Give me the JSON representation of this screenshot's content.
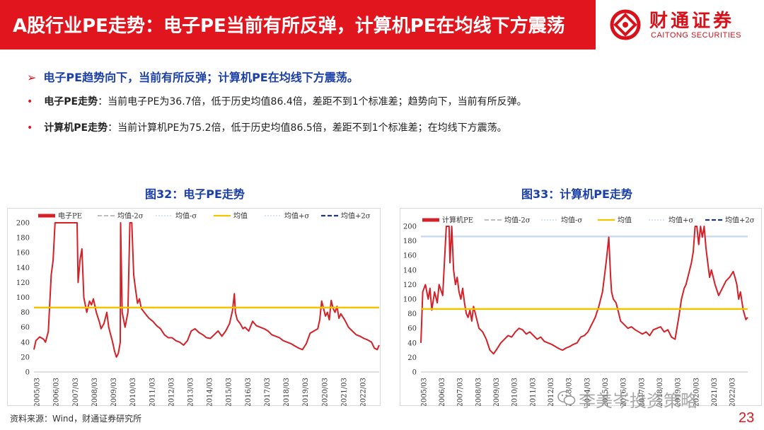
{
  "header": {
    "title": "A股行业PE走势：电子PE当前有所反弹，计算机PE在均线下方震荡",
    "logo_cn": "财通证券",
    "logo_en": "CAITONG SECURITIES"
  },
  "summary": {
    "headline": "电子PE趋势向下，当前有所反弹；计算机PE在均线下方震荡。",
    "bullets": [
      {
        "label": "电子PE走势",
        "text": "：当前电子PE为36.7倍，低于历史均值86.4倍，差距不到1个标准差；趋势向下，当前有所反弹。"
      },
      {
        "label": "计算机PE走势",
        "text": "：当前计算机PE为75.2倍，低于历史均值86.5倍，差距不到1个标准差；在均线下方震荡。"
      }
    ]
  },
  "colors": {
    "header_red": "#e0151e",
    "series_red": "#d42027",
    "mean_yellow": "#f5c400",
    "sigma_gray": "#a8a8a8",
    "sigma_light": "#c9dcef",
    "plus2_navy": "#1f3a7a",
    "title_blue": "#1a3fa8"
  },
  "chart_data": [
    {
      "type": "line",
      "title": "图32：电子PE走势",
      "ylim": [
        0,
        200
      ],
      "yticks": [
        0,
        20,
        40,
        60,
        80,
        100,
        120,
        140,
        160,
        180,
        200
      ],
      "xticks": [
        "2005/03",
        "2006/03",
        "2007/03",
        "2008/03",
        "2009/03",
        "2010/03",
        "2011/03",
        "2012/03",
        "2013/03",
        "2014/03",
        "2015/03",
        "2016/03",
        "2017/03",
        "2018/03",
        "2019/03",
        "2020/03",
        "2021/03",
        "2022/03"
      ],
      "xlim": [
        2005.0,
        2023.0
      ],
      "legend": [
        "电子PE",
        "均值-2σ",
        "均值-σ",
        "均值",
        "均值+σ",
        "均值+2σ"
      ],
      "legend_placement": "top",
      "mean": 86.4,
      "series": [
        {
          "name": "电子PE",
          "x": [
            2005.0,
            2005.1,
            2005.3,
            2005.5,
            2005.6,
            2005.75,
            2005.9,
            2006.0,
            2006.1,
            2006.2,
            2006.4,
            2006.6,
            2006.8,
            2007.0,
            2007.15,
            2007.2,
            2007.25,
            2007.3,
            2007.4,
            2007.5,
            2007.6,
            2007.75,
            2007.9,
            2008.0,
            2008.1,
            2008.25,
            2008.4,
            2008.5,
            2008.65,
            2008.8,
            2008.9,
            2009.0,
            2009.1,
            2009.2,
            2009.3,
            2009.4,
            2009.5,
            2009.52,
            2009.6,
            2009.75,
            2009.9,
            2010.0,
            2010.1,
            2010.2,
            2010.3,
            2010.4,
            2010.5,
            2010.6,
            2010.75,
            2010.9,
            2011.0,
            2011.2,
            2011.4,
            2011.6,
            2011.8,
            2012.0,
            2012.2,
            2012.4,
            2012.6,
            2012.8,
            2013.0,
            2013.2,
            2013.4,
            2013.6,
            2013.8,
            2014.0,
            2014.2,
            2014.4,
            2014.6,
            2014.8,
            2015.0,
            2015.2,
            2015.35,
            2015.45,
            2015.5,
            2015.6,
            2015.75,
            2015.9,
            2016.0,
            2016.2,
            2016.4,
            2016.6,
            2016.8,
            2017.0,
            2017.2,
            2017.4,
            2017.6,
            2017.8,
            2018.0,
            2018.2,
            2018.4,
            2018.6,
            2018.8,
            2019.0,
            2019.2,
            2019.4,
            2019.6,
            2019.8,
            2019.9,
            2020.0,
            2020.1,
            2020.2,
            2020.3,
            2020.4,
            2020.5,
            2020.6,
            2020.7,
            2020.8,
            2020.9,
            2021.0,
            2021.2,
            2021.4,
            2021.6,
            2021.8,
            2022.0,
            2022.2,
            2022.4,
            2022.6,
            2022.75,
            2022.9,
            2023.0
          ],
          "values": [
            30,
            42,
            47,
            44,
            40,
            54,
            130,
            150,
            200,
            200,
            200,
            200,
            200,
            200,
            200,
            200,
            200,
            120,
            150,
            165,
            100,
            80,
            95,
            90,
            98,
            80,
            68,
            58,
            65,
            80,
            60,
            50,
            40,
            28,
            20,
            25,
            40,
            200,
            80,
            60,
            80,
            200,
            200,
            130,
            110,
            92,
            98,
            85,
            80,
            75,
            72,
            68,
            62,
            58,
            50,
            46,
            46,
            42,
            40,
            36,
            42,
            55,
            58,
            53,
            50,
            46,
            45,
            50,
            55,
            48,
            55,
            65,
            82,
            105,
            80,
            70,
            65,
            58,
            60,
            55,
            68,
            62,
            60,
            58,
            55,
            50,
            48,
            46,
            42,
            40,
            38,
            35,
            32,
            30,
            38,
            52,
            55,
            58,
            70,
            95,
            85,
            75,
            80,
            70,
            96,
            85,
            80,
            88,
            72,
            78,
            70,
            60,
            55,
            50,
            48,
            45,
            43,
            40,
            32,
            30,
            36
          ]
        }
      ]
    },
    {
      "type": "line",
      "title": "图33：计算机PE走势",
      "ylim": [
        0,
        200
      ],
      "yticks": [
        0,
        20,
        40,
        60,
        80,
        100,
        120,
        140,
        160,
        180,
        200
      ],
      "xticks": [
        "2005/03",
        "2006/03",
        "2007/03",
        "2008/03",
        "2009/03",
        "2010/03",
        "2011/03",
        "2012/03",
        "2013/03",
        "2014/03",
        "2015/03",
        "2016/03",
        "2017/03",
        "2018/03",
        "2019/03",
        "2020/03",
        "2021/03",
        "2022/03"
      ],
      "xlim": [
        2005.0,
        2023.0
      ],
      "legend": [
        "计算机PE",
        "均值-2σ",
        "均值-σ",
        "均值",
        "均值+σ",
        "均值+2σ"
      ],
      "legend_placement": "top",
      "mean": 86.5,
      "plus_sigma": 186,
      "series": [
        {
          "name": "计算机PE",
          "x": [
            2005.0,
            2005.1,
            2005.25,
            2005.4,
            2005.5,
            2005.6,
            2005.75,
            2005.9,
            2006.0,
            2006.2,
            2006.4,
            2006.55,
            2006.6,
            2006.7,
            2006.8,
            2006.9,
            2007.0,
            2007.1,
            2007.2,
            2007.3,
            2007.4,
            2007.5,
            2007.6,
            2007.7,
            2007.8,
            2007.9,
            2008.0,
            2008.2,
            2008.4,
            2008.6,
            2008.8,
            2009.0,
            2009.2,
            2009.4,
            2009.6,
            2009.8,
            2010.0,
            2010.2,
            2010.4,
            2010.6,
            2010.8,
            2011.0,
            2011.2,
            2011.4,
            2011.6,
            2011.8,
            2012.0,
            2012.2,
            2012.4,
            2012.6,
            2012.8,
            2013.0,
            2013.2,
            2013.4,
            2013.6,
            2013.8,
            2014.0,
            2014.2,
            2014.4,
            2014.6,
            2014.8,
            2015.0,
            2015.2,
            2015.35,
            2015.45,
            2015.5,
            2015.6,
            2015.75,
            2015.9,
            2016.0,
            2016.2,
            2016.4,
            2016.6,
            2016.8,
            2017.0,
            2017.2,
            2017.4,
            2017.6,
            2017.8,
            2018.0,
            2018.2,
            2018.4,
            2018.6,
            2018.8,
            2019.0,
            2019.1,
            2019.2,
            2019.35,
            2019.5,
            2019.6,
            2019.8,
            2019.9,
            2020.0,
            2020.1,
            2020.2,
            2020.3,
            2020.4,
            2020.5,
            2020.6,
            2020.7,
            2020.8,
            2020.9,
            2021.0,
            2021.2,
            2021.4,
            2021.6,
            2021.8,
            2022.0,
            2022.2,
            2022.3,
            2022.4,
            2022.5,
            2022.6,
            2022.75,
            2022.9,
            2023.0
          ],
          "values": [
            40,
            110,
            120,
            100,
            115,
            85,
            110,
            95,
            120,
            105,
            200,
            200,
            150,
            200,
            140,
            120,
            130,
            110,
            100,
            115,
            95,
            80,
            75,
            85,
            70,
            90,
            80,
            60,
            55,
            45,
            30,
            25,
            32,
            40,
            45,
            50,
            48,
            55,
            60,
            58,
            52,
            55,
            50,
            45,
            48,
            42,
            40,
            38,
            35,
            32,
            30,
            33,
            35,
            38,
            40,
            48,
            50,
            55,
            65,
            75,
            90,
            110,
            150,
            185,
            130,
            110,
            100,
            95,
            80,
            70,
            65,
            60,
            62,
            58,
            55,
            52,
            55,
            50,
            58,
            60,
            62,
            55,
            58,
            48,
            45,
            60,
            75,
            100,
            115,
            120,
            140,
            150,
            165,
            200,
            200,
            175,
            200,
            185,
            200,
            170,
            150,
            130,
            140,
            120,
            105,
            115,
            125,
            130,
            138,
            130,
            120,
            100,
            110,
            85,
            72,
            75
          ]
        }
      ]
    }
  ],
  "footer": {
    "source": "资料来源：Wind，财通证券研究所",
    "watermark": "李美岑投资策略",
    "page_number": "23"
  }
}
